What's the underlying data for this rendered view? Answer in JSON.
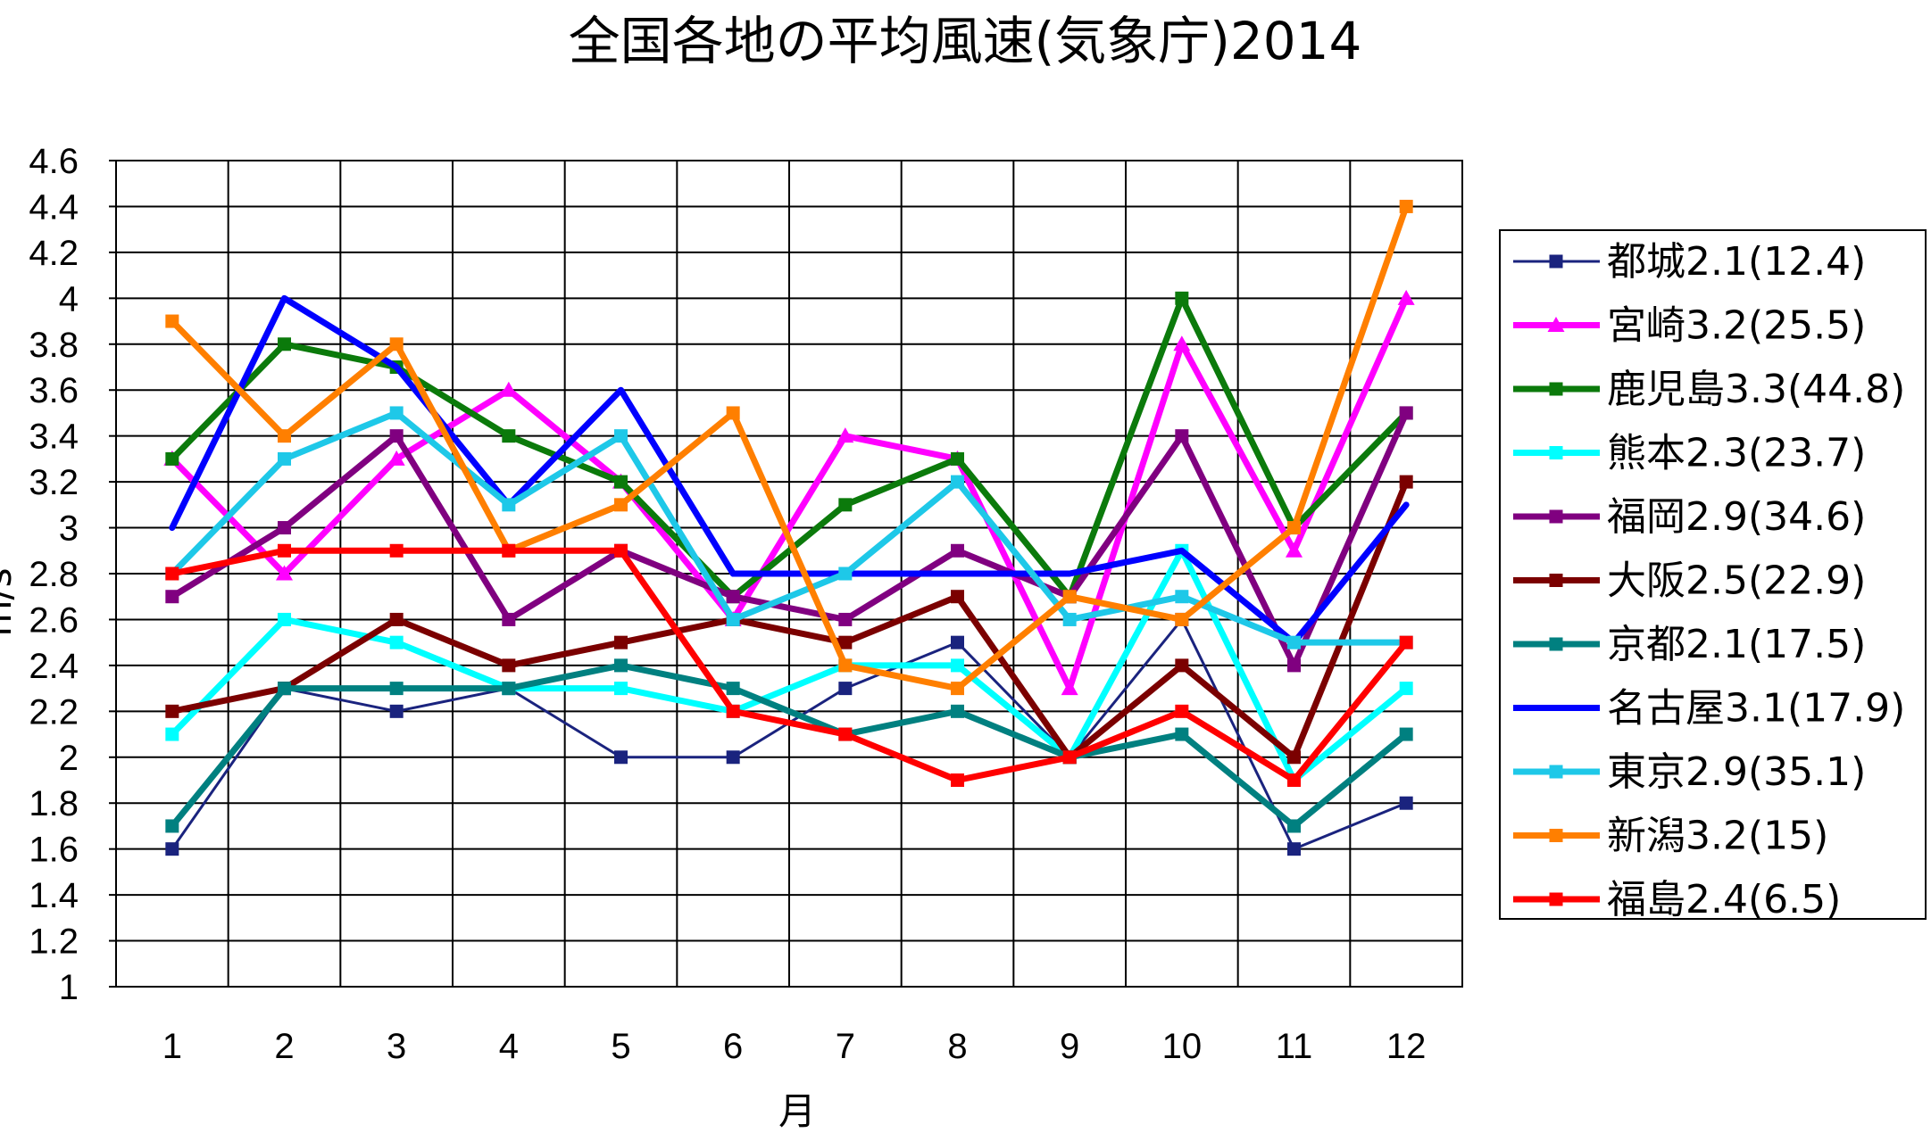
{
  "chart_data": {
    "type": "line",
    "title": "全国各地の平均風速(気象庁)2014",
    "xlabel": "月",
    "ylabel": "m/s",
    "x": [
      "1",
      "2",
      "3",
      "4",
      "5",
      "6",
      "7",
      "8",
      "9",
      "10",
      "11",
      "12"
    ],
    "ylim": [
      1,
      4.6
    ],
    "yticks": [
      "1",
      "1.2",
      "1.4",
      "1.6",
      "1.8",
      "2",
      "2.2",
      "2.4",
      "2.6",
      "2.8",
      "3",
      "3.2",
      "3.4",
      "3.6",
      "3.8",
      "4",
      "4.2",
      "4.4",
      "4.6"
    ],
    "grid": true,
    "legend_position": "right",
    "series": [
      {
        "name": "都城2.1(12.4)",
        "color": "#1a237e",
        "marker": "square",
        "width": 3,
        "values": [
          1.6,
          2.3,
          2.2,
          2.3,
          2.0,
          2.0,
          2.3,
          2.5,
          2.0,
          2.6,
          1.6,
          1.8
        ]
      },
      {
        "name": "宮崎3.2(25.5)",
        "color": "#ff00ff",
        "marker": "triangle",
        "width": 7,
        "values": [
          3.3,
          2.8,
          3.3,
          3.6,
          3.2,
          2.6,
          3.4,
          3.3,
          2.3,
          3.8,
          2.9,
          4.0
        ]
      },
      {
        "name": "鹿児島3.3(44.8)",
        "color": "#0b7a0b",
        "marker": "square",
        "width": 7,
        "values": [
          3.3,
          3.8,
          3.7,
          3.4,
          3.2,
          2.7,
          3.1,
          3.3,
          2.7,
          4.0,
          3.0,
          3.5
        ]
      },
      {
        "name": "熊本2.3(23.7)",
        "color": "#00ffff",
        "marker": "square",
        "width": 7,
        "values": [
          2.1,
          2.6,
          2.5,
          2.3,
          2.3,
          2.2,
          2.4,
          2.4,
          2.0,
          2.9,
          1.9,
          2.3
        ]
      },
      {
        "name": "福岡2.9(34.6)",
        "color": "#800080",
        "marker": "square",
        "width": 7,
        "values": [
          2.7,
          3.0,
          3.4,
          2.6,
          2.9,
          2.7,
          2.6,
          2.9,
          2.7,
          3.4,
          2.4,
          3.5
        ]
      },
      {
        "name": "大阪2.5(22.9)",
        "color": "#7b0000",
        "marker": "square",
        "width": 7,
        "values": [
          2.2,
          2.3,
          2.6,
          2.4,
          2.5,
          2.6,
          2.5,
          2.7,
          2.0,
          2.4,
          2.0,
          3.2
        ]
      },
      {
        "name": "京都2.1(17.5)",
        "color": "#008080",
        "marker": "square",
        "width": 7,
        "values": [
          1.7,
          2.3,
          2.3,
          2.3,
          2.4,
          2.3,
          2.1,
          2.2,
          2.0,
          2.1,
          1.7,
          2.1
        ]
      },
      {
        "name": "名古屋3.1(17.9)",
        "color": "#0000ff",
        "marker": "none",
        "width": 7,
        "values": [
          3.0,
          4.0,
          3.7,
          3.1,
          3.6,
          2.8,
          2.8,
          2.8,
          2.8,
          2.9,
          2.5,
          3.1
        ]
      },
      {
        "name": "東京2.9(35.1)",
        "color": "#1ec8e8",
        "marker": "square",
        "width": 7,
        "values": [
          2.8,
          3.3,
          3.5,
          3.1,
          3.4,
          2.6,
          2.8,
          3.2,
          2.6,
          2.7,
          2.5,
          2.5
        ]
      },
      {
        "name": "新潟3.2(15)",
        "color": "#ff7f00",
        "marker": "square",
        "width": 7,
        "values": [
          3.9,
          3.4,
          3.8,
          2.9,
          3.1,
          3.5,
          2.4,
          2.3,
          2.7,
          2.6,
          3.0,
          4.4
        ]
      },
      {
        "name": "福島2.4(6.5)",
        "color": "#ff0000",
        "marker": "square",
        "width": 7,
        "values": [
          2.8,
          2.9,
          2.9,
          2.9,
          2.9,
          2.2,
          2.1,
          1.9,
          2.0,
          2.2,
          1.9,
          2.5
        ]
      }
    ]
  }
}
